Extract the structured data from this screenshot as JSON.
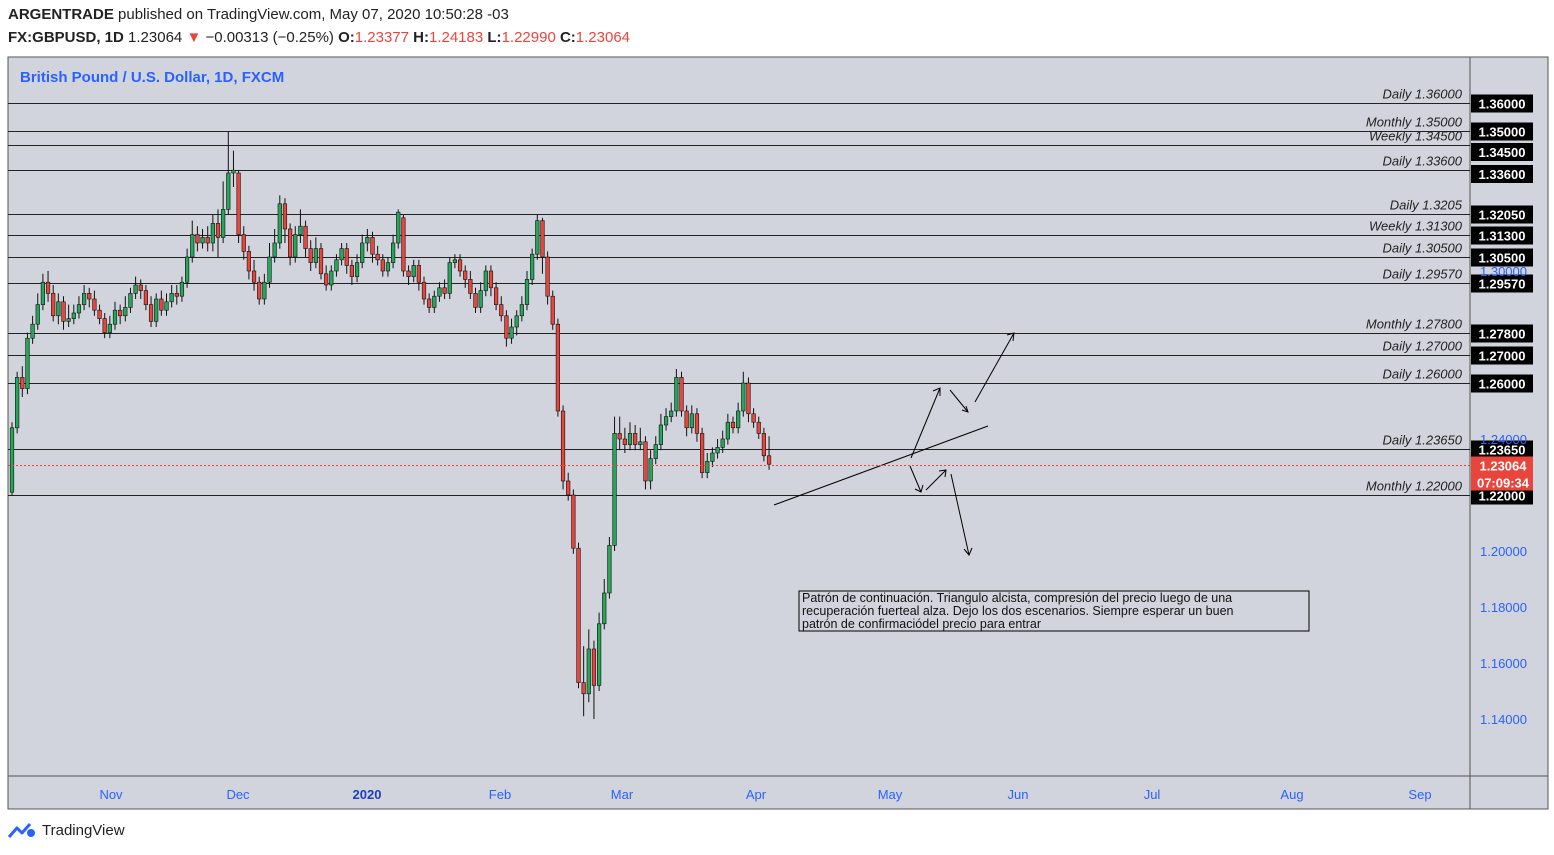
{
  "header": {
    "publisher": "ARGENTRADE",
    "published_text": "published on TradingView.com, May 07, 2020 10:50:28 -03",
    "symbol": "FX:GBPUSD, 1D",
    "last": "1.23064",
    "change_arrow": "▼",
    "change": "−0.00313 (−0.25%)",
    "o_label": "O:",
    "o_value": "1.23377",
    "h_label": "H:",
    "h_value": "1.24183",
    "l_label": "L:",
    "l_value": "1.22990",
    "c_label": "C:",
    "c_value": "1.23064"
  },
  "footer": {
    "brand": "TradingView",
    "logo_icon": "tradingview-logo-icon"
  },
  "colors": {
    "bg": "#d1d4dc",
    "up": "#26a65b",
    "down": "#e8463c",
    "title": "#2962ff",
    "axis_text": "#2962ff",
    "label_box": "#000000"
  },
  "chart_data": {
    "type": "candlestick",
    "title": "British Pound / U.S. Dollar, 1D, FXCM",
    "x_axis_labels": [
      "Nov",
      "Dec",
      "2020",
      "Feb",
      "Mar",
      "Apr",
      "May",
      "Jun",
      "Jul",
      "Aug",
      "Sep"
    ],
    "y_ticks": [
      "1.14000",
      "1.16000",
      "1.18000",
      "1.20000",
      "1.24000",
      "1.30000"
    ],
    "ylim": [
      1.12,
      1.37
    ],
    "levels": [
      {
        "label": "Daily 1.36000",
        "tag": "1.36000",
        "value": 1.36
      },
      {
        "label": "Monthly 1.35000",
        "tag": "1.35000",
        "value": 1.35
      },
      {
        "label": "Weekly 1.34500",
        "tag": "1.34500",
        "value": 1.345
      },
      {
        "label": "Daily 1.33600",
        "tag": "1.33600",
        "value": 1.336
      },
      {
        "label": "Daily 1.3205",
        "tag": "1.32050",
        "value": 1.3205
      },
      {
        "label": "Weekly 1.31300",
        "tag": "1.31300",
        "value": 1.313
      },
      {
        "label": "Daily 1.30500",
        "tag": "1.30500",
        "value": 1.305
      },
      {
        "label": "Daily 1.29570",
        "tag": "1.29570",
        "value": 1.2957
      },
      {
        "label": "Monthly 1.27800",
        "tag": "1.27800",
        "value": 1.278
      },
      {
        "label": "Daily 1.27000",
        "tag": "1.27000",
        "value": 1.27
      },
      {
        "label": "Daily 1.26000",
        "tag": "1.26000",
        "value": 1.26
      },
      {
        "label": "Daily 1.23650",
        "tag": "1.23650",
        "value": 1.2365
      },
      {
        "label": "Monthly 1.22000",
        "tag": "1.22000",
        "value": 1.22
      }
    ],
    "current_price": {
      "value": 1.23064,
      "label": "1.23064",
      "countdown": "07:09:34"
    },
    "annotation": [
      "Patrón de continuación. Triangulo alcista, compresión del precio luego de una",
      "recuperación fuerteal alza. Dejo los dos escenarios. Siempre esperar un buen",
      "patrón de confirmaciódel precio para entrar"
    ],
    "candles": [
      [
        1.221,
        1.244,
        1.246,
        1.22
      ],
      [
        1.244,
        1.262,
        1.264,
        1.242
      ],
      [
        1.262,
        1.258,
        1.266,
        1.255
      ],
      [
        1.258,
        1.276,
        1.278,
        1.256
      ],
      [
        1.276,
        1.281,
        1.284,
        1.274
      ],
      [
        1.281,
        1.288,
        1.292,
        1.279
      ],
      [
        1.288,
        1.296,
        1.299,
        1.286
      ],
      [
        1.296,
        1.292,
        1.3,
        1.289
      ],
      [
        1.292,
        1.284,
        1.295,
        1.282
      ],
      [
        1.284,
        1.289,
        1.292,
        1.281
      ],
      [
        1.289,
        1.282,
        1.291,
        1.279
      ],
      [
        1.282,
        1.283,
        1.288,
        1.28
      ],
      [
        1.283,
        1.285,
        1.288,
        1.281
      ],
      [
        1.285,
        1.288,
        1.291,
        1.283
      ],
      [
        1.288,
        1.292,
        1.295,
        1.286
      ],
      [
        1.292,
        1.29,
        1.294,
        1.287
      ],
      [
        1.29,
        1.286,
        1.293,
        1.284
      ],
      [
        1.286,
        1.283,
        1.288,
        1.281
      ],
      [
        1.283,
        1.278,
        1.285,
        1.276
      ],
      [
        1.278,
        1.281,
        1.284,
        1.276
      ],
      [
        1.281,
        1.286,
        1.289,
        1.279
      ],
      [
        1.286,
        1.284,
        1.288,
        1.281
      ],
      [
        1.284,
        1.287,
        1.291,
        1.282
      ],
      [
        1.287,
        1.292,
        1.294,
        1.285
      ],
      [
        1.292,
        1.295,
        1.298,
        1.29
      ],
      [
        1.295,
        1.293,
        1.297,
        1.29
      ],
      [
        1.293,
        1.288,
        1.295,
        1.286
      ],
      [
        1.288,
        1.282,
        1.291,
        1.28
      ],
      [
        1.282,
        1.29,
        1.292,
        1.28
      ],
      [
        1.29,
        1.286,
        1.293,
        1.284
      ],
      [
        1.286,
        1.289,
        1.292,
        1.284
      ],
      [
        1.289,
        1.292,
        1.295,
        1.287
      ],
      [
        1.292,
        1.291,
        1.295,
        1.288
      ],
      [
        1.291,
        1.296,
        1.298,
        1.289
      ],
      [
        1.296,
        1.305,
        1.308,
        1.294
      ],
      [
        1.305,
        1.313,
        1.318,
        1.303
      ],
      [
        1.313,
        1.31,
        1.316,
        1.307
      ],
      [
        1.31,
        1.312,
        1.315,
        1.308
      ],
      [
        1.312,
        1.31,
        1.316,
        1.307
      ],
      [
        1.31,
        1.317,
        1.32,
        1.307
      ],
      [
        1.317,
        1.312,
        1.322,
        1.305
      ],
      [
        1.312,
        1.322,
        1.332,
        1.31
      ],
      [
        1.322,
        1.335,
        1.35,
        1.32
      ],
      [
        1.335,
        1.336,
        1.343,
        1.33
      ],
      [
        1.335,
        1.313,
        1.336,
        1.31
      ],
      [
        1.313,
        1.307,
        1.316,
        1.304
      ],
      [
        1.307,
        1.3,
        1.309,
        1.297
      ],
      [
        1.3,
        1.296,
        1.304,
        1.293
      ],
      [
        1.296,
        1.29,
        1.298,
        1.288
      ],
      [
        1.29,
        1.296,
        1.299,
        1.288
      ],
      [
        1.296,
        1.305,
        1.31,
        1.294
      ],
      [
        1.305,
        1.31,
        1.315,
        1.303
      ],
      [
        1.31,
        1.324,
        1.327,
        1.308
      ],
      [
        1.324,
        1.315,
        1.326,
        1.31
      ],
      [
        1.315,
        1.305,
        1.317,
        1.302
      ],
      [
        1.305,
        1.313,
        1.316,
        1.303
      ],
      [
        1.313,
        1.316,
        1.322,
        1.31
      ],
      [
        1.316,
        1.308,
        1.318,
        1.305
      ],
      [
        1.308,
        1.303,
        1.311,
        1.3
      ],
      [
        1.303,
        1.308,
        1.312,
        1.301
      ],
      [
        1.308,
        1.299,
        1.31,
        1.297
      ],
      [
        1.299,
        1.295,
        1.302,
        1.293
      ],
      [
        1.295,
        1.3,
        1.302,
        1.293
      ],
      [
        1.3,
        1.304,
        1.306,
        1.298
      ],
      [
        1.304,
        1.308,
        1.31,
        1.302
      ],
      [
        1.308,
        1.302,
        1.31,
        1.299
      ],
      [
        1.302,
        1.298,
        1.304,
        1.295
      ],
      [
        1.298,
        1.303,
        1.306,
        1.296
      ],
      [
        1.303,
        1.31,
        1.313,
        1.301
      ],
      [
        1.31,
        1.312,
        1.315,
        1.307
      ],
      [
        1.312,
        1.306,
        1.314,
        1.303
      ],
      [
        1.306,
        1.304,
        1.309,
        1.302
      ],
      [
        1.304,
        1.3,
        1.306,
        1.298
      ],
      [
        1.3,
        1.303,
        1.305,
        1.298
      ],
      [
        1.303,
        1.31,
        1.313,
        1.301
      ],
      [
        1.31,
        1.321,
        1.322,
        1.308
      ],
      [
        1.319,
        1.3,
        1.32,
        1.298
      ],
      [
        1.3,
        1.298,
        1.302,
        1.295
      ],
      [
        1.298,
        1.302,
        1.304,
        1.296
      ],
      [
        1.302,
        1.296,
        1.304,
        1.293
      ],
      [
        1.296,
        1.29,
        1.298,
        1.288
      ],
      [
        1.29,
        1.287,
        1.292,
        1.285
      ],
      [
        1.287,
        1.291,
        1.293,
        1.285
      ],
      [
        1.291,
        1.294,
        1.296,
        1.289
      ],
      [
        1.294,
        1.292,
        1.297,
        1.29
      ],
      [
        1.292,
        1.303,
        1.305,
        1.29
      ],
      [
        1.303,
        1.304,
        1.306,
        1.301
      ],
      [
        1.304,
        1.3,
        1.306,
        1.298
      ],
      [
        1.3,
        1.297,
        1.302,
        1.294
      ],
      [
        1.297,
        1.292,
        1.3,
        1.29
      ],
      [
        1.292,
        1.287,
        1.294,
        1.285
      ],
      [
        1.287,
        1.293,
        1.296,
        1.285
      ],
      [
        1.293,
        1.3,
        1.302,
        1.291
      ],
      [
        1.3,
        1.294,
        1.302,
        1.291
      ],
      [
        1.294,
        1.288,
        1.296,
        1.286
      ],
      [
        1.288,
        1.284,
        1.291,
        1.282
      ],
      [
        1.284,
        1.276,
        1.286,
        1.273
      ],
      [
        1.276,
        1.28,
        1.283,
        1.274
      ],
      [
        1.28,
        1.284,
        1.286,
        1.277
      ],
      [
        1.284,
        1.288,
        1.291,
        1.282
      ],
      [
        1.288,
        1.297,
        1.3,
        1.286
      ],
      [
        1.297,
        1.306,
        1.308,
        1.295
      ],
      [
        1.306,
        1.318,
        1.32,
        1.304
      ],
      [
        1.318,
        1.305,
        1.319,
        1.299
      ],
      [
        1.305,
        1.291,
        1.307,
        1.288
      ],
      [
        1.291,
        1.281,
        1.293,
        1.279
      ],
      [
        1.281,
        1.25,
        1.283,
        1.248
      ],
      [
        1.25,
        1.225,
        1.252,
        1.222
      ],
      [
        1.225,
        1.22,
        1.228,
        1.218
      ],
      [
        1.22,
        1.201,
        1.222,
        1.199
      ],
      [
        1.201,
        1.153,
        1.203,
        1.151
      ],
      [
        1.153,
        1.149,
        1.166,
        1.141
      ],
      [
        1.149,
        1.165,
        1.172,
        1.146
      ],
      [
        1.165,
        1.152,
        1.168,
        1.14
      ],
      [
        1.152,
        1.174,
        1.178,
        1.15
      ],
      [
        1.174,
        1.185,
        1.19,
        1.172
      ],
      [
        1.185,
        1.202,
        1.205,
        1.183
      ],
      [
        1.202,
        1.242,
        1.248,
        1.2
      ],
      [
        1.242,
        1.24,
        1.248,
        1.236
      ],
      [
        1.24,
        1.238,
        1.244,
        1.235
      ],
      [
        1.238,
        1.242,
        1.246,
        1.236
      ],
      [
        1.242,
        1.238,
        1.245,
        1.236
      ],
      [
        1.238,
        1.239,
        1.244,
        1.236
      ],
      [
        1.239,
        1.225,
        1.241,
        1.222
      ],
      [
        1.225,
        1.233,
        1.236,
        1.222
      ],
      [
        1.233,
        1.238,
        1.241,
        1.231
      ],
      [
        1.238,
        1.245,
        1.249,
        1.236
      ],
      [
        1.245,
        1.248,
        1.251,
        1.243
      ],
      [
        1.248,
        1.25,
        1.253,
        1.246
      ],
      [
        1.25,
        1.262,
        1.265,
        1.248
      ],
      [
        1.262,
        1.25,
        1.264,
        1.248
      ],
      [
        1.25,
        1.244,
        1.252,
        1.241
      ],
      [
        1.244,
        1.249,
        1.252,
        1.242
      ],
      [
        1.249,
        1.242,
        1.251,
        1.239
      ],
      [
        1.242,
        1.228,
        1.244,
        1.226
      ],
      [
        1.228,
        1.232,
        1.235,
        1.226
      ],
      [
        1.232,
        1.235,
        1.237,
        1.23
      ],
      [
        1.235,
        1.237,
        1.24,
        1.233
      ],
      [
        1.237,
        1.24,
        1.243,
        1.235
      ],
      [
        1.24,
        1.246,
        1.249,
        1.238
      ],
      [
        1.246,
        1.244,
        1.248,
        1.242
      ],
      [
        1.244,
        1.25,
        1.253,
        1.242
      ],
      [
        1.25,
        1.26,
        1.264,
        1.248
      ],
      [
        1.26,
        1.249,
        1.262,
        1.246
      ],
      [
        1.249,
        1.246,
        1.251,
        1.244
      ],
      [
        1.246,
        1.242,
        1.248,
        1.24
      ],
      [
        1.242,
        1.234,
        1.244,
        1.232
      ],
      [
        1.234,
        1.231,
        1.241,
        1.229
      ]
    ]
  }
}
